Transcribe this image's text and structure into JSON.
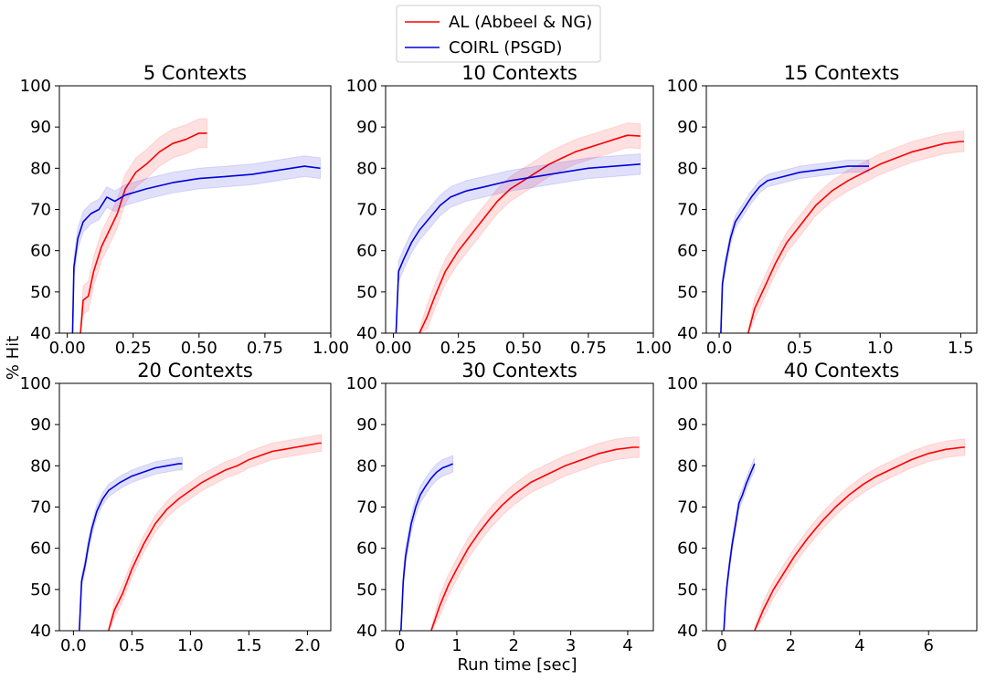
{
  "figure": {
    "ylabel": "% Hit",
    "xlabel": "Run time [sec]"
  },
  "legend": {
    "position": "top-center",
    "entries": [
      {
        "label": "AL (Abbeel & NG)",
        "color": "#ff0000"
      },
      {
        "label": "COIRL (PSGD)",
        "color": "#0000dd"
      }
    ]
  },
  "chart_data": [
    {
      "type": "line",
      "title": "5 Contexts",
      "xlim": [
        -0.03,
        1.0
      ],
      "ylim": [
        40,
        100
      ],
      "xticks": [
        0.0,
        0.25,
        0.5,
        0.75,
        1.0
      ],
      "xtick_labels": [
        "0.00",
        "0.25",
        "0.50",
        "0.75",
        "1.00"
      ],
      "yticks": [
        40,
        50,
        60,
        70,
        80,
        90,
        100
      ],
      "series": [
        {
          "name": "AL (Abbeel & NG)",
          "color": "#ff0000",
          "band": 3.5,
          "x": [
            0.05,
            0.06,
            0.08,
            0.1,
            0.13,
            0.16,
            0.19,
            0.22,
            0.26,
            0.3,
            0.35,
            0.4,
            0.45,
            0.5,
            0.53
          ],
          "y": [
            40,
            48,
            49,
            55,
            61,
            65,
            69,
            75,
            79,
            81,
            84,
            86,
            87,
            88.5,
            88.5
          ]
        },
        {
          "name": "COIRL (PSGD)",
          "color": "#0000dd",
          "band": 2.5,
          "x": [
            0.02,
            0.025,
            0.04,
            0.06,
            0.09,
            0.12,
            0.15,
            0.18,
            0.22,
            0.3,
            0.4,
            0.5,
            0.6,
            0.7,
            0.8,
            0.9,
            0.96
          ],
          "y": [
            40,
            56,
            63,
            67,
            69,
            70,
            73,
            72,
            73.5,
            75,
            76.5,
            77.5,
            78,
            78.5,
            79.5,
            80.5,
            80
          ]
        }
      ]
    },
    {
      "type": "line",
      "title": "10 Contexts",
      "xlim": [
        -0.03,
        1.0
      ],
      "ylim": [
        40,
        100
      ],
      "xticks": [
        0.0,
        0.25,
        0.5,
        0.75,
        1.0
      ],
      "xtick_labels": [
        "0.00",
        "0.25",
        "0.50",
        "0.75",
        "1.00"
      ],
      "yticks": [
        40,
        50,
        60,
        70,
        80,
        90,
        100
      ],
      "series": [
        {
          "name": "AL (Abbeel & NG)",
          "color": "#ff0000",
          "band": 3.0,
          "x": [
            0.1,
            0.13,
            0.16,
            0.2,
            0.25,
            0.3,
            0.35,
            0.4,
            0.45,
            0.5,
            0.55,
            0.6,
            0.65,
            0.7,
            0.75,
            0.8,
            0.85,
            0.9,
            0.95
          ],
          "y": [
            40,
            44,
            49,
            55,
            60,
            64,
            68,
            72,
            75,
            77,
            79,
            81,
            82.5,
            84,
            85,
            86,
            87,
            88,
            87.8
          ]
        },
        {
          "name": "COIRL (PSGD)",
          "color": "#0000dd",
          "band": 2.5,
          "x": [
            0.01,
            0.02,
            0.04,
            0.07,
            0.1,
            0.14,
            0.18,
            0.22,
            0.28,
            0.35,
            0.45,
            0.55,
            0.65,
            0.75,
            0.85,
            0.95
          ],
          "y": [
            40,
            55,
            58,
            62,
            65,
            68,
            71,
            73,
            74.5,
            75.5,
            77,
            78,
            79,
            80,
            80.5,
            81
          ]
        }
      ]
    },
    {
      "type": "line",
      "title": "15 Contexts",
      "xlim": [
        -0.08,
        1.6
      ],
      "ylim": [
        40,
        100
      ],
      "xticks": [
        0.0,
        0.5,
        1.0,
        1.5
      ],
      "xtick_labels": [
        "0.0",
        "0.5",
        "1.0",
        "1.5"
      ],
      "yticks": [
        40,
        50,
        60,
        70,
        80,
        90,
        100
      ],
      "series": [
        {
          "name": "AL (Abbeel & NG)",
          "color": "#ff0000",
          "band": 2.5,
          "x": [
            0.18,
            0.22,
            0.28,
            0.35,
            0.42,
            0.5,
            0.6,
            0.7,
            0.8,
            0.9,
            1.0,
            1.1,
            1.2,
            1.3,
            1.4,
            1.5,
            1.52
          ],
          "y": [
            40,
            46,
            51,
            57,
            62,
            66,
            71,
            74.5,
            77,
            79,
            81,
            82.5,
            84,
            85,
            86,
            86.5,
            86.5
          ]
        },
        {
          "name": "COIRL (PSGD)",
          "color": "#0000dd",
          "band": 1.5,
          "x": [
            0.01,
            0.02,
            0.04,
            0.07,
            0.1,
            0.15,
            0.2,
            0.25,
            0.3,
            0.4,
            0.5,
            0.6,
            0.7,
            0.8,
            0.9,
            0.93
          ],
          "y": [
            40,
            52,
            57,
            63,
            67,
            70,
            73,
            75.5,
            77,
            78,
            79,
            79.5,
            80,
            80.5,
            80.5,
            80.5
          ]
        }
      ]
    },
    {
      "type": "line",
      "title": "20 Contexts",
      "xlim": [
        -0.12,
        2.2
      ],
      "ylim": [
        40,
        100
      ],
      "xticks": [
        0.0,
        0.5,
        1.0,
        1.5,
        2.0
      ],
      "xtick_labels": [
        "0.0",
        "0.5",
        "1.0",
        "1.5",
        "2.0"
      ],
      "yticks": [
        40,
        50,
        60,
        70,
        80,
        90,
        100
      ],
      "series": [
        {
          "name": "AL (Abbeel & NG)",
          "color": "#ff0000",
          "band": 2.0,
          "x": [
            0.3,
            0.35,
            0.42,
            0.5,
            0.6,
            0.7,
            0.8,
            0.9,
            1.0,
            1.1,
            1.2,
            1.3,
            1.4,
            1.5,
            1.6,
            1.7,
            1.8,
            1.9,
            2.0,
            2.1,
            2.12
          ],
          "y": [
            40,
            45,
            49,
            55,
            61,
            66,
            69.5,
            72,
            74,
            76,
            77.5,
            79,
            80,
            81.5,
            82.5,
            83.5,
            84,
            84.5,
            85,
            85.5,
            85.5
          ]
        },
        {
          "name": "COIRL (PSGD)",
          "color": "#0000dd",
          "band": 1.5,
          "x": [
            0.05,
            0.07,
            0.1,
            0.13,
            0.16,
            0.2,
            0.25,
            0.3,
            0.4,
            0.5,
            0.6,
            0.7,
            0.8,
            0.9,
            0.93
          ],
          "y": [
            40,
            52,
            56,
            61,
            65,
            69,
            72,
            74,
            76,
            77.5,
            78.5,
            79.5,
            80,
            80.5,
            80.5
          ]
        }
      ]
    },
    {
      "type": "line",
      "title": "30 Contexts",
      "xlim": [
        -0.25,
        4.45
      ],
      "ylim": [
        40,
        100
      ],
      "xticks": [
        0,
        1,
        2,
        3,
        4
      ],
      "xtick_labels": [
        "0",
        "1",
        "2",
        "3",
        "4"
      ],
      "yticks": [
        40,
        50,
        60,
        70,
        80,
        90,
        100
      ],
      "series": [
        {
          "name": "AL (Abbeel & NG)",
          "color": "#ff0000",
          "band": 2.5,
          "x": [
            0.55,
            0.7,
            0.85,
            1.0,
            1.2,
            1.4,
            1.6,
            1.8,
            2.0,
            2.3,
            2.6,
            2.9,
            3.2,
            3.5,
            3.8,
            4.1,
            4.2
          ],
          "y": [
            40,
            46,
            51,
            55,
            60,
            64,
            67.5,
            70.5,
            73,
            76,
            78,
            80,
            81.5,
            83,
            84,
            84.5,
            84.5
          ]
        },
        {
          "name": "COIRL (PSGD)",
          "color": "#0000dd",
          "band": 2.0,
          "x": [
            0.02,
            0.06,
            0.1,
            0.15,
            0.2,
            0.28,
            0.36,
            0.45,
            0.55,
            0.65,
            0.75,
            0.85,
            0.93
          ],
          "y": [
            40,
            52,
            58,
            62,
            66,
            70,
            73,
            75,
            77,
            78.5,
            79.5,
            80,
            80.5
          ]
        }
      ]
    },
    {
      "type": "line",
      "title": "40 Contexts",
      "xlim": [
        -0.45,
        7.4
      ],
      "ylim": [
        40,
        100
      ],
      "xticks": [
        0,
        2,
        4,
        6
      ],
      "xtick_labels": [
        "0",
        "2",
        "4",
        "6"
      ],
      "yticks": [
        40,
        50,
        60,
        70,
        80,
        90,
        100
      ],
      "series": [
        {
          "name": "AL (Abbeel & NG)",
          "color": "#ff0000",
          "band": 2.0,
          "x": [
            0.95,
            1.2,
            1.5,
            1.8,
            2.1,
            2.5,
            2.9,
            3.3,
            3.7,
            4.1,
            4.5,
            5.0,
            5.5,
            6.0,
            6.5,
            7.0,
            7.05
          ],
          "y": [
            40,
            45,
            50,
            54,
            58,
            62.5,
            66.5,
            70,
            73,
            75.5,
            77.5,
            79.5,
            81.5,
            83,
            84,
            84.5,
            84.5
          ]
        },
        {
          "name": "COIRL (PSGD)",
          "color": "#0000dd",
          "band": 1.5,
          "x": [
            0.06,
            0.1,
            0.15,
            0.22,
            0.3,
            0.4,
            0.5,
            0.6,
            0.7,
            0.8,
            0.9,
            0.95
          ],
          "y": [
            40,
            46,
            51,
            56,
            61,
            66,
            71,
            73,
            75.5,
            77.5,
            79.5,
            80.5
          ]
        }
      ]
    }
  ]
}
